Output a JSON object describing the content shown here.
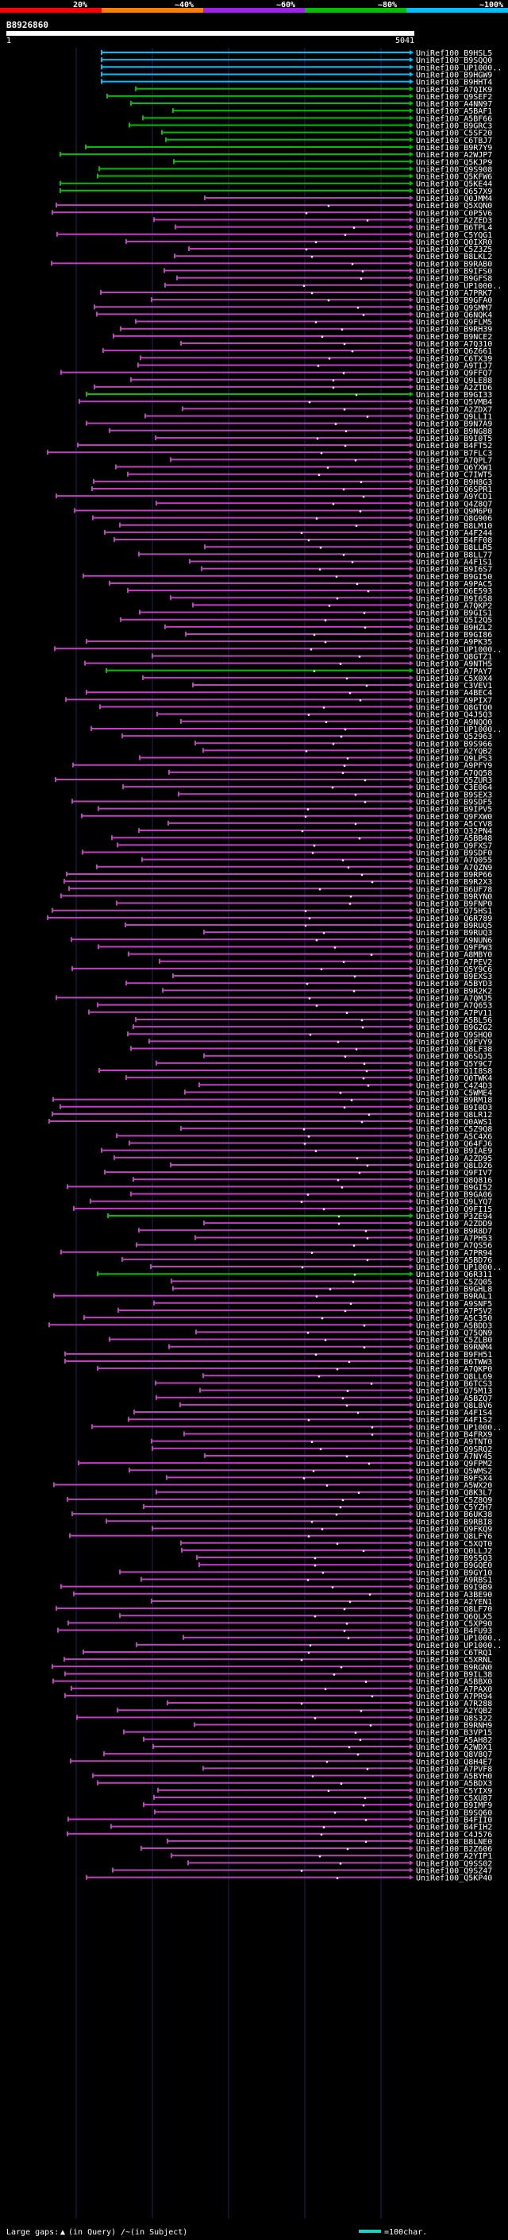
{
  "chart_data": {
    "type": "alignment-overview",
    "query_id": "B8926860",
    "query_start": "1",
    "query_end": "5041",
    "identity_legend": [
      {
        "label": "20%",
        "color": "#ff0000"
      },
      {
        "label": "~40%",
        "color": "#ff7f00"
      },
      {
        "label": "~60%",
        "color": "#a020f0"
      },
      {
        "label": "~80%",
        "color": "#00c000"
      },
      {
        "label": "~100%",
        "color": "#00bfff"
      }
    ],
    "footer": {
      "gaps_label": "Large gaps: ",
      "gaps_query": "(in Query)",
      "gaps_subject": "/~(in Subject)",
      "scale_label": "=100char."
    },
    "hits": [
      "UniRef100_B9HSL5",
      "UniRef100_B9SQQ0",
      "UniRef100_UP1000..",
      "UniRef100_B9HGW9",
      "UniRef100_B9HHT4",
      "UniRef100_A7QIK9",
      "UniRef100_Q9SEF2",
      "UniRef100_A4NN97",
      "UniRef100_A5BAF1",
      "UniRef100_A5BF66",
      "UniRef100_B9GRC3",
      "UniRef100_C5SF20",
      "UniRef100_C6TBJ7",
      "UniRef100_B9R7Y9",
      "UniRef100_A2WJP7",
      "UniRef100_Q5KJP9",
      "UniRef100_Q9S908",
      "UniRef100_Q5KFW6",
      "UniRef100_Q5KE44",
      "UniRef100_Q657X9",
      "UniRef100_Q0JMM4",
      "UniRef100_Q5XQN0",
      "UniRef100_C0P5V6",
      "UniRef100_A2ZED3",
      "UniRef100_B6TPL4",
      "UniRef100_C5YQG1",
      "UniRef100_Q0IXR0",
      "UniRef100_C5Z3Z5",
      "UniRef100_B8LKL2",
      "UniRef100_B9RAB0",
      "UniRef100_B9IFS0",
      "UniRef100_B9GFS8",
      "UniRef100_UP1000..",
      "UniRef100_A7PRK7",
      "UniRef100_B9GFA0",
      "UniRef100_Q9SMM7",
      "UniRef100_Q6NQK4",
      "UniRef100_Q9FLM5",
      "UniRef100_B9RH39",
      "UniRef100_B9NCE2",
      "UniRef100_A7Q310",
      "UniRef100_Q6Z661",
      "UniRef100_C6TX39",
      "UniRef100_A9TIJ7",
      "UniRef100_Q9FFQ7",
      "UniRef100_Q9LE88",
      "UniRef100_A2ZTD6",
      "UniRef100_B9GI33",
      "UniRef100_Q5VMB4",
      "UniRef100_A2ZDX7",
      "UniRef100_Q9LLI1",
      "UniRef100_B9N7A9",
      "UniRef100_B9NG88",
      "UniRef100_B9I0T5",
      "UniRef100_B4FT52",
      "UniRef100_B7FLC3",
      "UniRef100_A7QPL7",
      "UniRef100_Q6YXW1",
      "UniRef100_C7IWT5",
      "UniRef100_B9H8G3",
      "UniRef100_Q6SPR1",
      "UniRef100_A9YCD1",
      "UniRef100_Q4Z8Q7",
      "UniRef100_Q9M6P0",
      "UniRef100_Q8G906",
      "UniRef100_B8LM10",
      "UniRef100_A4F244",
      "UniRef100_B4FF08",
      "UniRef100_B8LLR5",
      "UniRef100_B8LL77",
      "UniRef100_A4F1S1",
      "UniRef100_B9I6S7",
      "UniRef100_B9GI50",
      "UniRef100_A9PAC5",
      "UniRef100_Q6E593",
      "UniRef100_B9I658",
      "UniRef100_A7QKP2",
      "UniRef100_B9GIS1",
      "UniRef100_Q5I2Q5",
      "UniRef100_B9HZL2",
      "UniRef100_B9GI86",
      "UniRef100_A9PK35",
      "UniRef100_UP1000..",
      "UniRef100_Q8GTZ1",
      "UniRef100_A9NTH5",
      "UniRef100_A7PAY7",
      "UniRef100_C5X0X4",
      "UniRef100_C3VEV1",
      "UniRef100_A4BEC4",
      "UniRef100_A9PIX7",
      "UniRef100_Q8GTQ0",
      "UniRef100_Q4J5Q3",
      "UniRef100_A9NQQ0",
      "UniRef100_UP1000..",
      "UniRef100_Q52963",
      "UniRef100_B9S966",
      "UniRef100_A2YQB2",
      "UniRef100_Q9LPS3",
      "UniRef100_A9PFY9",
      "UniRef100_A7QQ58",
      "UniRef100_Q5ZUR3",
      "UniRef100_C3E064",
      "UniRef100_B9SEX3",
      "UniRef100_B9SDF5",
      "UniRef100_B9IPV5",
      "UniRef100_Q9FXW0",
      "UniRef100_A5CYV8",
      "UniRef100_Q32PN4",
      "UniRef100_A5BB48",
      "UniRef100_Q9FXS7",
      "UniRef100_B9SDF0",
      "UniRef100_A7Q055",
      "UniRef100_A7QZN9",
      "UniRef100_B9RP66",
      "UniRef100_B9R2X3",
      "UniRef100_B6UF78",
      "UniRef100_B9RYN0",
      "UniRef100_B9FNP0",
      "UniRef100_Q75HS1",
      "UniRef100_Q6R789",
      "UniRef100_B9RUQ5",
      "UniRef100_B9RUQ3",
      "UniRef100_A9NUN6",
      "UniRef100_Q9FPW3",
      "UniRef100_A8MBY0",
      "UniRef100_A7PEV2",
      "UniRef100_Q5Y9C6",
      "UniRef100_B9EXS3",
      "UniRef100_A5BYD3",
      "UniRef100_B9R2K2",
      "UniRef100_A7QMJ5",
      "UniRef100_A7Q653",
      "UniRef100_A7PV11",
      "UniRef100_A5BL56",
      "UniRef100_B9G2G2",
      "UniRef100_Q9SHQ0",
      "UniRef100_Q9FVY9",
      "UniRef100_Q8LF38",
      "UniRef100_Q6SQJ5",
      "UniRef100_Q5Y9C7",
      "UniRef100_Q1I8S8",
      "UniRef100_Q0TWK4",
      "UniRef100_C4Z4D3",
      "UniRef100_C5WME4",
      "UniRef100_B9RM18",
      "UniRef100_B9I0D3",
      "UniRef100_Q8LR12",
      "UniRef100_Q0AWS1",
      "UniRef100_C5Z9Q8",
      "UniRef100_A5C4X6",
      "UniRef100_Q64FJ6",
      "UniRef100_B9IAE9",
      "UniRef100_A2ZD95",
      "UniRef100_Q8LDZ6",
      "UniRef100_Q9FIV7",
      "UniRef100_Q8Q816",
      "UniRef100_B9GI52",
      "UniRef100_B9GA06",
      "UniRef100_Q9LYQ7",
      "UniRef100_Q9FI15",
      "UniRef100_P3ZE94",
      "UniRef100_A2ZDD9",
      "UniRef100_B9R8D7",
      "UniRef100_A7PH53",
      "UniRef100_A7QS56",
      "UniRef100_A7PR94",
      "UniRef100_A5BD76",
      "UniRef100_UP1000..",
      "UniRef100_Q6R311",
      "UniRef100_C5ZQ05",
      "UniRef100_B9GHL8",
      "UniRef100_B9RAL1",
      "UniRef100_A9SNF5",
      "UniRef100_A7P5V2",
      "UniRef100_A5C350",
      "UniRef100_A5BDD3",
      "UniRef100_Q75QN9",
      "UniRef100_C5ZLB0",
      "UniRef100_B9RNM4",
      "UniRef100_B9FH51",
      "UniRef100_B6TWW3",
      "UniRef100_A7QKP0",
      "UniRef100_Q8LL69",
      "UniRef100_B6TCS3",
      "UniRef100_Q75M13",
      "UniRef100_A5BZQ7",
      "UniRef100_Q8L8V6",
      "UniRef100_A4F1S4",
      "UniRef100_A4F1S2",
      "UniRef100_UP1000..",
      "UniRef100_B4FRX9",
      "UniRef100_A9TNT0",
      "UniRef100_Q9SRQ2",
      "UniRef100_A7NY45",
      "UniRef100_Q9FPM2",
      "UniRef100_Q5WMS2",
      "UniRef100_B9FSX4",
      "UniRef100_A5WX20",
      "UniRef100_Q8K3L7",
      "UniRef100_C5Z8Q9",
      "UniRef100_C5YZH7",
      "UniRef100_B6UK38",
      "UniRef100_B9RBI8",
      "UniRef100_Q9FKQ9",
      "UniRef100_Q8LFY6",
      "UniRef100_C5XQT0",
      "UniRef100_Q0LLJ2",
      "UniRef100_B9S5Q3",
      "UniRef100_B9GQE0",
      "UniRef100_B9GY10",
      "UniRef100_A9RBS1",
      "UniRef100_B9I9B9",
      "UniRef100_A3BE90",
      "UniRef100_A2YEN1",
      "UniRef100_Q8LF70",
      "UniRef100_Q6QLX5",
      "UniRef100_C5XP90",
      "UniRef100_B4FU93",
      "UniRef100_UP1000..",
      "UniRef100_UP1000..",
      "UniRef100_C6TRQ1",
      "UniRef100_C5XRNL",
      "UniRef100_B9RGN0",
      "UniRef100_B9IL38",
      "UniRef100_A5BBX0",
      "UniRef100_A7PAX0",
      "UniRef100_A7PR94",
      "UniRef100_A7R288",
      "UniRef100_A2YQB2",
      "UniRef100_Q8S322",
      "UniRef100_B9RNH9",
      "UniRef100_B3VP15",
      "UniRef100_A5AH82",
      "UniRef100_A2WDX1",
      "UniRef100_Q8V8Q7",
      "UniRef100_Q8H4E7",
      "UniRef100_A7PVF8",
      "UniRef100_A5BYH0",
      "UniRef100_A5BDX3",
      "UniRef100_C5YIX9",
      "UniRef100_C5XU87",
      "UniRef100_B9IMF9",
      "UniRef100_B9SQ60",
      "UniRef100_B4FII0",
      "UniRef100_B4FIH2",
      "UniRef100_C4J576",
      "UniRef100_B8LNE0",
      "UniRef100_B2Z606",
      "UniRef100_A2YIP1",
      "UniRef100_Q9SS02",
      "UniRef100_Q9SZ47",
      "UniRef100_Q5KP40"
    ]
  }
}
